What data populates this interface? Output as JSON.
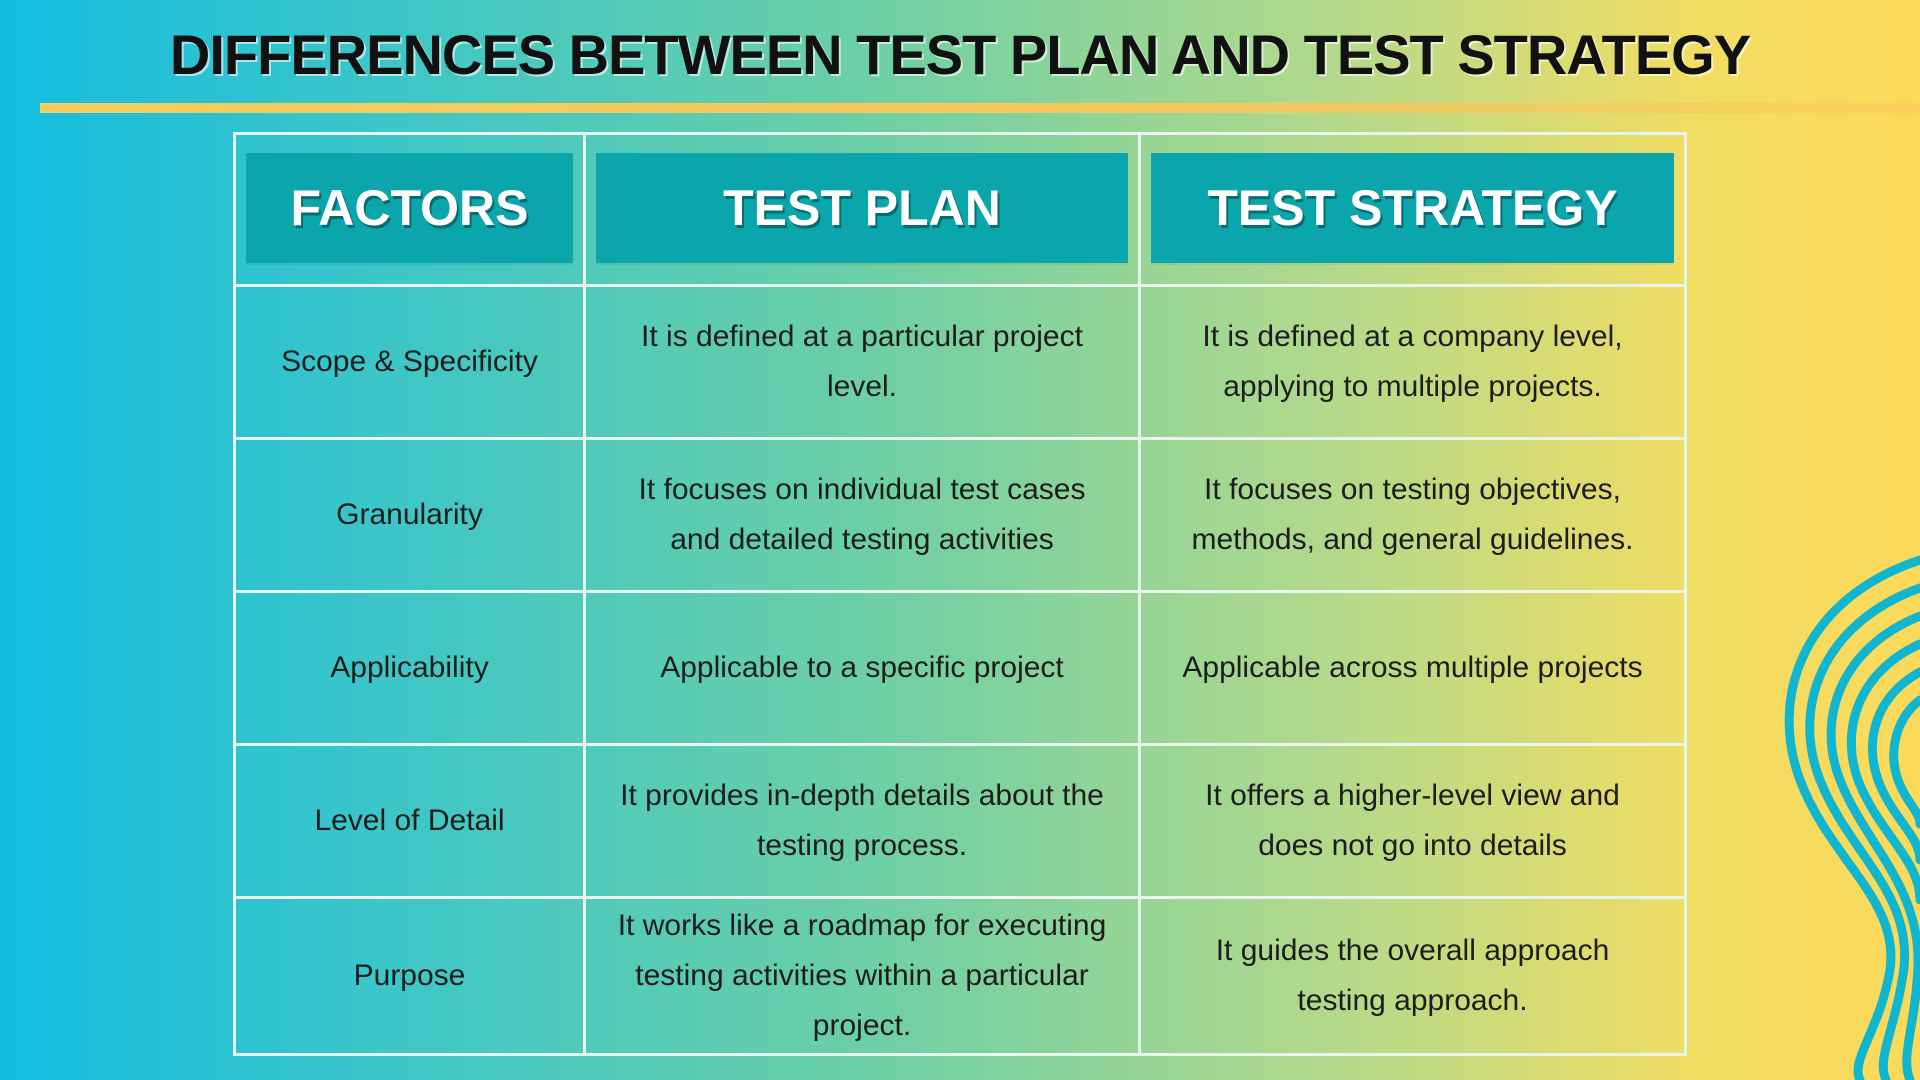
{
  "title": "DIFFERENCES BETWEEN TEST PLAN AND TEST STRATEGY",
  "colors": {
    "header_fill": "#0aa6ac",
    "header_text": "#ffffff",
    "grid_lines": "#e9f5ee",
    "title_rule": "#f3cd5e",
    "swirl": "#10b6cf"
  },
  "table": {
    "headers": [
      "FACTORS",
      "TEST PLAN",
      "TEST STRATEGY"
    ],
    "rows": [
      {
        "factor": "Scope & Specificity",
        "test_plan": "It is defined at a particular project level.",
        "test_strategy": "It is defined at a company level, applying to multiple projects."
      },
      {
        "factor": "Granularity",
        "test_plan": "It focuses on individual test cases and detailed testing activities",
        "test_strategy": "It focuses on testing objectives, methods, and general guidelines."
      },
      {
        "factor": "Applicability",
        "test_plan": "Applicable to a specific project",
        "test_strategy": "Applicable across multiple projects"
      },
      {
        "factor": "Level of Detail",
        "test_plan": "It provides in-depth details about the testing process.",
        "test_strategy": "It offers a higher-level view and does not go into details"
      },
      {
        "factor": "Purpose",
        "test_plan": "It works like a roadmap for executing testing activities within a particular project.",
        "test_strategy": "It guides the overall approach testing approach."
      }
    ]
  }
}
